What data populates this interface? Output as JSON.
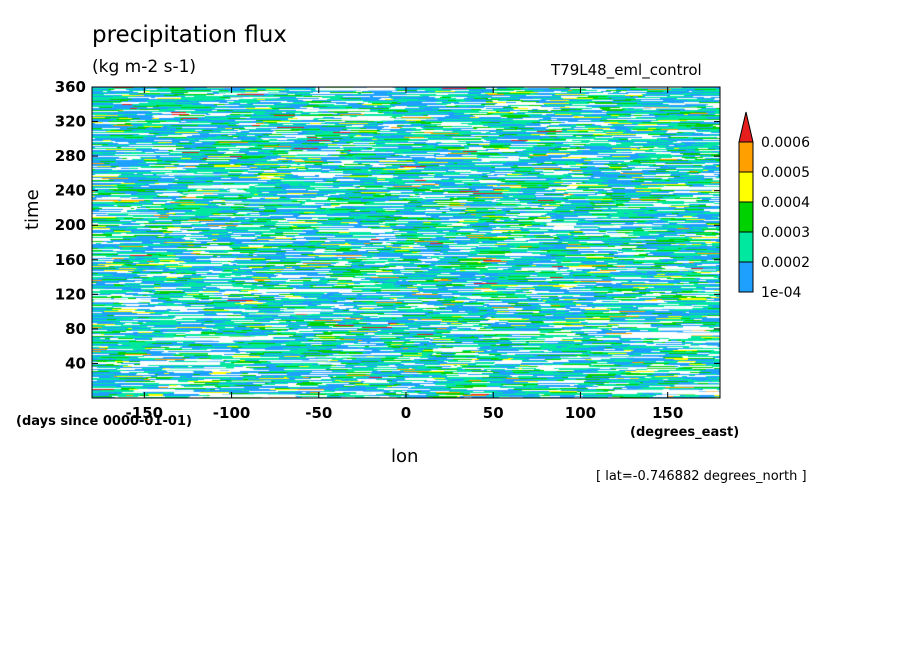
{
  "chart_data": {
    "type": "heatmap",
    "title": "precipitation flux",
    "units": "(kg m-2 s-1)",
    "run_name": "T79L48_eml_control",
    "xlabel": "lon",
    "x_units": "(degrees_east)",
    "ylabel": "time",
    "y_units": "(days since 0000-01-01)",
    "annotation": "[ lat=-0.746882 degrees_north ]",
    "xlim": [
      -180,
      180
    ],
    "ylim": [
      0,
      360
    ],
    "x_ticks": [
      -150,
      -100,
      -50,
      0,
      50,
      100,
      150
    ],
    "x_tick_labels": [
      "-150",
      "-100",
      "-50",
      "0",
      "50",
      "100",
      "150"
    ],
    "y_ticks": [
      40,
      80,
      120,
      160,
      200,
      240,
      280,
      320,
      360
    ],
    "y_tick_labels": [
      "40",
      "80",
      "120",
      "160",
      "200",
      "240",
      "280",
      "320",
      "360"
    ],
    "colorbar": {
      "levels": [
        "1e-04",
        "0.0002",
        "0.0003",
        "0.0004",
        "0.0005",
        "0.0006"
      ],
      "colors": [
        "#1ea0ff",
        "#00e8a0",
        "#00d200",
        "#ffff00",
        "#ffa000",
        "#e61e1e"
      ],
      "below_color": "#ffffff",
      "extend": "max"
    }
  }
}
